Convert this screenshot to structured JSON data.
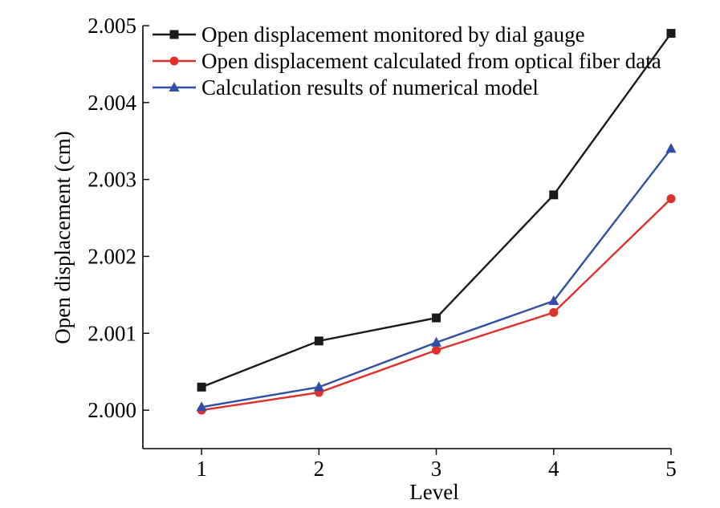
{
  "chart_data": {
    "type": "line",
    "title": "",
    "xlabel": "Level",
    "ylabel": "Open displacement (cm)",
    "x": [
      1,
      2,
      3,
      4,
      5
    ],
    "xlim": [
      0.5,
      5
    ],
    "ylim": [
      1.9995,
      2.005
    ],
    "xticks": [
      1,
      2,
      3,
      4,
      5
    ],
    "xtick_labels": [
      "1",
      "2",
      "3",
      "4",
      "5"
    ],
    "yticks": [
      2.0,
      2.001,
      2.002,
      2.003,
      2.004,
      2.005
    ],
    "ytick_labels": [
      "2.000",
      "2.001",
      "2.002",
      "2.003",
      "2.004",
      "2.005"
    ],
    "grid": false,
    "legend_position": "top-left",
    "series": [
      {
        "name": "Open displacement monitored by dial gauge",
        "color": "#1a1a1a",
        "marker": "square",
        "values": [
          2.0003,
          2.0009,
          2.0012,
          2.0028,
          2.0049
        ]
      },
      {
        "name": "Open displacement calculated from optical fiber data",
        "color": "#e0302c",
        "marker": "circle",
        "values": [
          2.0,
          2.00023,
          2.00078,
          2.00127,
          2.00275
        ]
      },
      {
        "name": "Calculation results of numerical model",
        "color": "#2e4fa3",
        "marker": "triangle",
        "values": [
          2.00004,
          2.0003,
          2.00088,
          2.00142,
          2.0034
        ]
      }
    ]
  }
}
